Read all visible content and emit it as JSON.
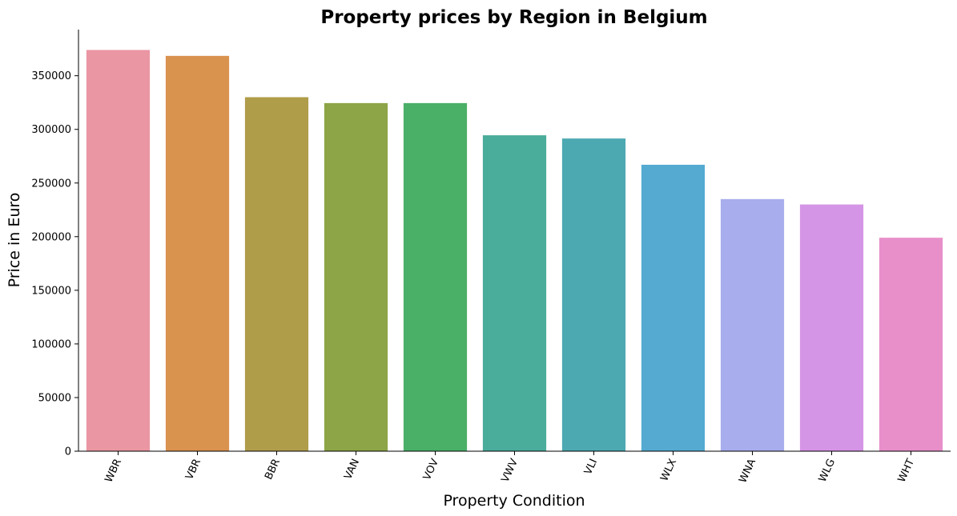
{
  "chart_data": {
    "type": "bar",
    "title": "Property prices by Region in Belgium",
    "xlabel": "Property Condition",
    "ylabel": "Price in Euro",
    "categories": [
      "WBR",
      "VBR",
      "BBR",
      "VAN",
      "VOV",
      "VWV",
      "VLI",
      "WLX",
      "WNA",
      "WLG",
      "WHT"
    ],
    "values": [
      374000,
      368500,
      330000,
      324500,
      324500,
      294500,
      291500,
      267000,
      235000,
      230000,
      199000
    ],
    "colors": [
      "#ea96a3",
      "#da924f",
      "#b09d4a",
      "#8da546",
      "#4aaf67",
      "#4aac9a",
      "#4da9b1",
      "#54aad1",
      "#a8aded",
      "#d595e6",
      "#e88fca"
    ],
    "ylim": [
      0,
      393000
    ],
    "yticks": [
      0,
      50000,
      100000,
      150000,
      200000,
      250000,
      300000,
      350000
    ],
    "grid": false,
    "legend": "none"
  }
}
